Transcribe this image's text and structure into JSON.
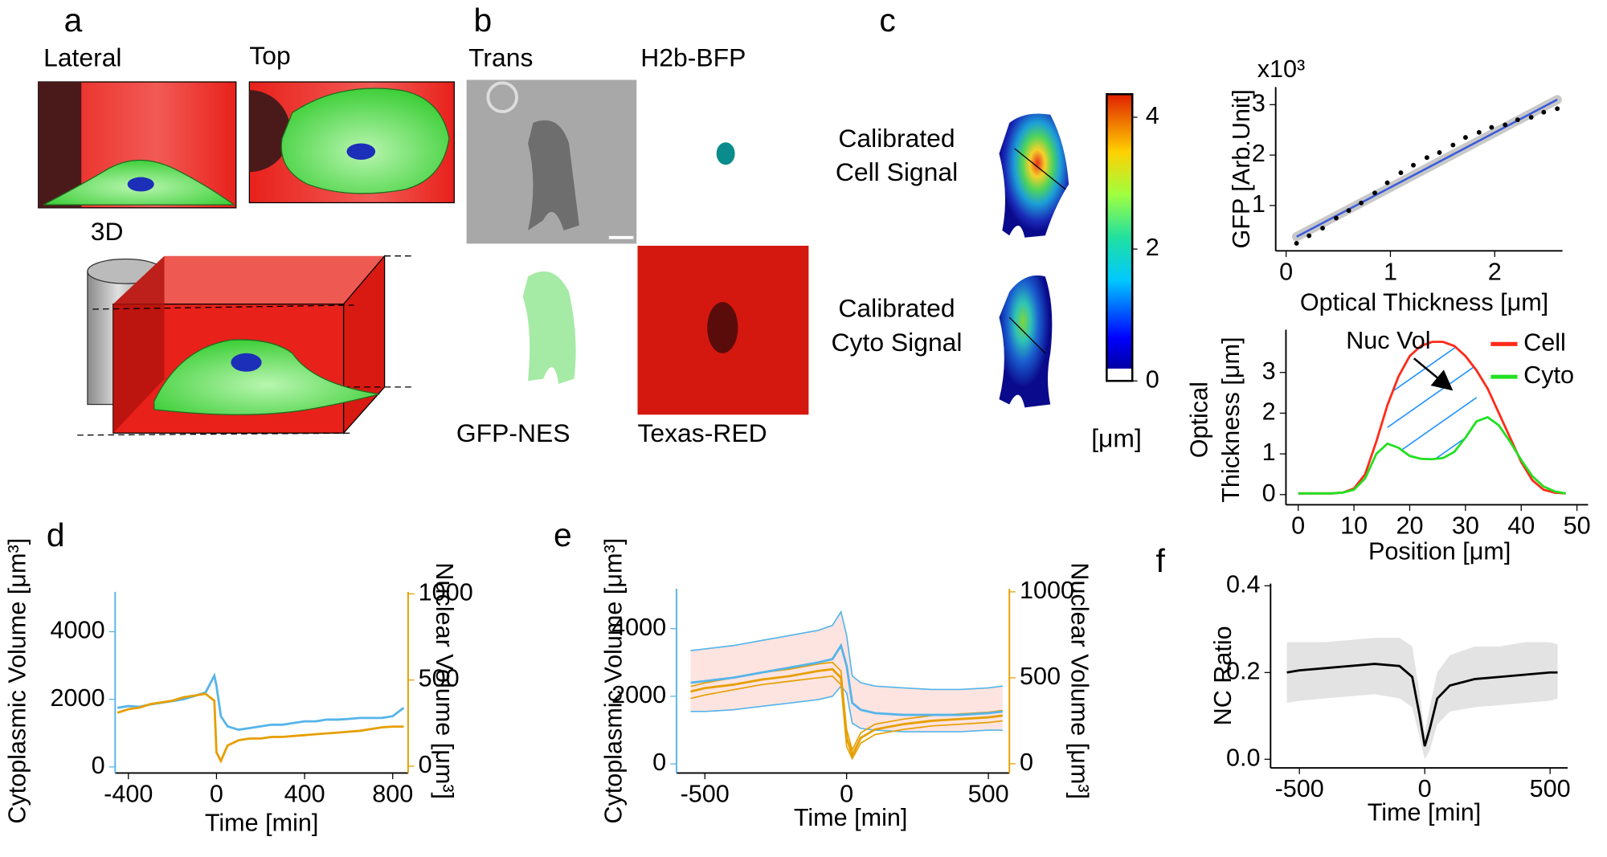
{
  "panel_a": {
    "label": "a",
    "views": [
      "Lateral",
      "Top",
      "3D"
    ]
  },
  "panel_b": {
    "label": "b",
    "channels": [
      "Trans",
      "H2b-BFP",
      "GFP-NES",
      "Texas-RED"
    ]
  },
  "panel_c": {
    "label": "c",
    "maps": [
      [
        "Calibrated",
        "Cell Signal"
      ],
      [
        "Calibrated",
        "Cyto Signal"
      ]
    ],
    "colorbar": {
      "lim": [
        0,
        4.35
      ],
      "ticks": [
        0,
        2,
        4
      ],
      "label": "[μm]"
    }
  },
  "panel_d": {
    "label": "d"
  },
  "panel_e": {
    "label": "e"
  },
  "panel_f": {
    "label": "f"
  },
  "chart_data": [
    {
      "type": "scatter",
      "xlabel": "Optical Thickness [μm]",
      "ylabel": "GFP [Arb.Unit]",
      "y_multiplier": "x10³",
      "x": [
        0.1,
        0.22,
        0.35,
        0.48,
        0.6,
        0.72,
        0.85,
        0.97,
        1.1,
        1.22,
        1.35,
        1.47,
        1.6,
        1.72,
        1.85,
        1.97,
        2.1,
        2.22,
        2.35,
        2.47,
        2.6
      ],
      "values": [
        0.25,
        0.4,
        0.55,
        0.75,
        0.9,
        1.05,
        1.25,
        1.45,
        1.65,
        1.8,
        1.95,
        2.05,
        2.2,
        2.35,
        2.45,
        2.55,
        2.6,
        2.7,
        2.75,
        2.85,
        2.92
      ],
      "color": "#000000",
      "fit": {
        "x": [
          0.1,
          2.6
        ],
        "values": [
          0.38,
          3.1
        ],
        "color": "#3b5bdb"
      },
      "xlim": [
        -0.1,
        2.65
      ],
      "ylim": [
        0.1,
        3.35
      ],
      "xticks": [
        0,
        1,
        2
      ],
      "yticks": [
        1,
        2,
        3
      ]
    },
    {
      "type": "line",
      "xlabel": "Position [μm]",
      "ylabel": [
        "Optical",
        "Thickness [μm]"
      ],
      "annotation": "Nuc Vol",
      "legend": "top-right",
      "x": [
        0,
        2,
        4,
        6,
        8,
        10,
        12,
        14,
        16,
        18,
        20,
        22,
        24,
        26,
        28,
        30,
        32,
        34,
        36,
        38,
        40,
        42,
        44,
        46,
        48
      ],
      "series": [
        {
          "name": "Cell",
          "color": "#ff2a1a",
          "values": [
            0.03,
            0.03,
            0.03,
            0.03,
            0.05,
            0.15,
            0.5,
            1.3,
            2.2,
            2.9,
            3.4,
            3.65,
            3.75,
            3.75,
            3.65,
            3.4,
            3.05,
            2.6,
            2.0,
            1.4,
            0.8,
            0.35,
            0.12,
            0.05,
            0.03
          ]
        },
        {
          "name": "Cyto",
          "color": "#22e022",
          "values": [
            0.03,
            0.03,
            0.03,
            0.03,
            0.05,
            0.12,
            0.4,
            1.0,
            1.25,
            1.15,
            0.95,
            0.88,
            0.87,
            0.9,
            1.05,
            1.4,
            1.8,
            1.9,
            1.7,
            1.3,
            0.85,
            0.45,
            0.2,
            0.08,
            0.03
          ]
        }
      ],
      "hatch_color": "#1e90ff",
      "xlim": [
        -2.2,
        52
      ],
      "ylim": [
        -0.25,
        4.05
      ],
      "xticks": [
        0,
        10,
        20,
        30,
        40,
        50
      ],
      "yticks": [
        0,
        1,
        2,
        3
      ]
    },
    {
      "type": "line",
      "xlabel": "Time [min]",
      "ylabel": "Cytoplasmic Volume [μm³]",
      "y2label": "Nuclear Volume [μm³]",
      "x": [
        -450,
        -400,
        -350,
        -300,
        -250,
        -200,
        -150,
        -100,
        -50,
        -10,
        0,
        20,
        50,
        100,
        150,
        200,
        250,
        300,
        350,
        400,
        450,
        500,
        550,
        600,
        650,
        700,
        750,
        800,
        850
      ],
      "series": [
        {
          "color": "#56b4e9",
          "values": [
            1750,
            1800,
            1780,
            1850,
            1900,
            1950,
            2000,
            2100,
            2200,
            2700,
            2400,
            1500,
            1200,
            1100,
            1150,
            1200,
            1250,
            1250,
            1300,
            1350,
            1350,
            1400,
            1400,
            1420,
            1450,
            1450,
            1450,
            1500,
            1750
          ]
        },
        {
          "color": "#e69f00",
          "axis": "y2",
          "values": [
            310,
            330,
            340,
            360,
            370,
            380,
            400,
            410,
            420,
            380,
            80,
            30,
            120,
            150,
            160,
            160,
            170,
            170,
            175,
            180,
            185,
            190,
            195,
            200,
            205,
            215,
            225,
            230,
            230
          ]
        }
      ],
      "xlim": [
        -460,
        870
      ],
      "ylim": [
        -180,
        5180
      ],
      "y2lim": [
        -40,
        1012
      ],
      "xticks": [
        -400,
        0,
        400,
        800
      ],
      "yticks": [
        0,
        2000,
        4000
      ],
      "y2ticks": [
        0,
        500,
        1000
      ]
    },
    {
      "type": "line",
      "xlabel": "Time [min]",
      "ylabel": "Cytoplasmic Volume [μm³]",
      "y2label": "Nuclear Volume [μm³]",
      "x": [
        -550,
        -500,
        -400,
        -300,
        -200,
        -100,
        -50,
        -20,
        0,
        20,
        50,
        100,
        200,
        300,
        400,
        500,
        550
      ],
      "series": [
        {
          "color": "#56b4e9",
          "band_color": "#fde4e1",
          "values": [
            2400,
            2450,
            2550,
            2700,
            2850,
            3000,
            3100,
            3500,
            2900,
            1800,
            1600,
            1500,
            1450,
            1450,
            1450,
            1500,
            1550
          ],
          "upper": [
            3350,
            3400,
            3500,
            3650,
            3800,
            3950,
            4100,
            4500,
            3800,
            2600,
            2400,
            2300,
            2250,
            2200,
            2200,
            2250,
            2300
          ],
          "lower": [
            1550,
            1550,
            1600,
            1700,
            1800,
            1900,
            2000,
            2300,
            2100,
            1200,
            1050,
            1000,
            950,
            950,
            950,
            1000,
            1000
          ]
        },
        {
          "color": "#e69f00",
          "axis": "y2",
          "values": [
            420,
            440,
            460,
            490,
            510,
            540,
            550,
            500,
            150,
            50,
            150,
            200,
            230,
            250,
            260,
            270,
            280
          ],
          "upper": [
            450,
            470,
            500,
            530,
            550,
            580,
            590,
            540,
            200,
            80,
            180,
            230,
            260,
            280,
            290,
            300,
            310
          ],
          "lower": [
            380,
            400,
            430,
            460,
            480,
            500,
            510,
            460,
            100,
            30,
            120,
            170,
            200,
            220,
            230,
            240,
            250
          ]
        }
      ],
      "xlim": [
        -600,
        574
      ],
      "ylim": [
        -270,
        5180
      ],
      "y2lim": [
        -54,
        1018
      ],
      "xticks": [
        -500,
        0,
        500
      ],
      "yticks": [
        0,
        2000,
        4000
      ],
      "y2ticks": [
        0,
        500,
        1000
      ]
    },
    {
      "type": "line",
      "xlabel": "Time [min]",
      "ylabel": "NC Ratio",
      "x": [
        -550,
        -500,
        -400,
        -300,
        -200,
        -100,
        -50,
        -20,
        0,
        20,
        50,
        100,
        200,
        300,
        400,
        500,
        530
      ],
      "series": [
        {
          "color": "#000000",
          "band_color": "#e3e3e3",
          "values": [
            0.2,
            0.205,
            0.21,
            0.215,
            0.22,
            0.215,
            0.19,
            0.1,
            0.03,
            0.07,
            0.14,
            0.17,
            0.185,
            0.19,
            0.195,
            0.2,
            0.2
          ],
          "lower": [
            0.13,
            0.135,
            0.14,
            0.145,
            0.15,
            0.14,
            0.12,
            0.05,
            0.0,
            0.02,
            0.08,
            0.11,
            0.12,
            0.125,
            0.13,
            0.135,
            0.14
          ],
          "upper": [
            0.27,
            0.27,
            0.27,
            0.275,
            0.28,
            0.28,
            0.26,
            0.15,
            0.06,
            0.12,
            0.2,
            0.24,
            0.26,
            0.26,
            0.27,
            0.27,
            0.265
          ]
        }
      ],
      "xlim": [
        -615,
        570
      ],
      "ylim": [
        -0.02,
        0.405
      ],
      "xticks": [
        -500,
        0,
        500
      ],
      "yticks": [
        {
          "value": 0,
          "label": "0.0"
        },
        0.2,
        0.4
      ]
    }
  ]
}
